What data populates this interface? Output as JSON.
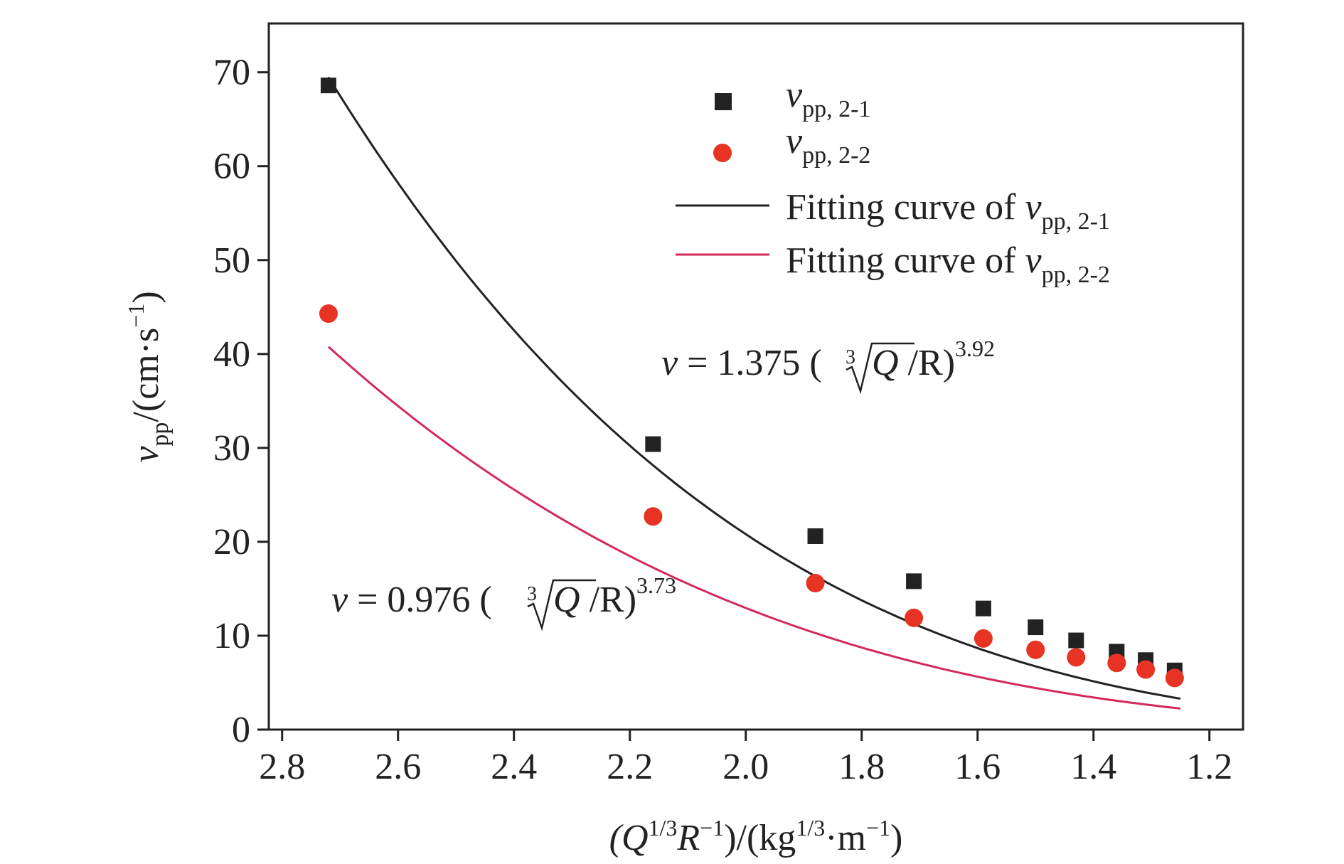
{
  "chart_data": {
    "type": "scatter",
    "x_axis": {
      "label_parts": [
        "(Q",
        "1/3",
        "R",
        "−1",
        ")/(kg",
        "1/3",
        "·m",
        "−1",
        ")"
      ],
      "range": [
        2.9,
        1.15
      ],
      "reversed": true,
      "ticks": [
        2.8,
        2.6,
        2.4,
        2.2,
        2.0,
        1.8,
        1.6,
        1.4,
        1.2
      ],
      "tick_labels": [
        "2.8",
        "2.6",
        "2.4",
        "2.2",
        "2.0",
        "1.8",
        "1.6",
        "1.4",
        "1.2"
      ]
    },
    "y_axis": {
      "label_parts": [
        "v",
        "pp",
        "/(cm·s",
        "−1",
        ")"
      ],
      "range": [
        0,
        75
      ],
      "ticks": [
        0,
        10,
        20,
        30,
        40,
        50,
        60,
        70
      ],
      "tick_labels": [
        "0",
        "10",
        "20",
        "30",
        "40",
        "50",
        "60",
        "70"
      ]
    },
    "series": [
      {
        "name_parts": [
          "v",
          "pp, 2-1"
        ],
        "marker": "square",
        "color": "#222222",
        "x": [
          2.72,
          2.16,
          1.88,
          1.71,
          1.59,
          1.5,
          1.43,
          1.36,
          1.31,
          1.26
        ],
        "y": [
          68.6,
          30.4,
          20.6,
          15.8,
          12.9,
          10.9,
          9.5,
          8.3,
          7.4,
          6.3
        ]
      },
      {
        "name_parts": [
          "v",
          "pp, 2-2"
        ],
        "marker": "circle",
        "color": "#e63323",
        "x": [
          2.72,
          2.16,
          1.88,
          1.71,
          1.59,
          1.5,
          1.43,
          1.36,
          1.31,
          1.26
        ],
        "y": [
          44.3,
          22.7,
          15.6,
          11.9,
          9.7,
          8.5,
          7.7,
          7.1,
          6.4,
          5.5
        ]
      }
    ],
    "fits": [
      {
        "label_parts": [
          "Fitting curve of ",
          "v",
          "pp, 2-1"
        ],
        "color": "#222222",
        "coef": 1.375,
        "exp": 3.92,
        "x_range": [
          2.72,
          1.25
        ],
        "equation": {
          "lhs": "v",
          "eq": " = 1.375 (",
          "root_index": "3",
          "radicand": "Q",
          "rest": " /R)",
          "power": "3.92"
        }
      },
      {
        "label_parts": [
          "Fitting curve of ",
          "v",
          "pp, 2-2"
        ],
        "color": "#d42a5a",
        "coef": 0.976,
        "exp": 3.73,
        "x_range": [
          2.72,
          1.25
        ],
        "equation": {
          "lhs": "v",
          "eq": " = 0.976 (",
          "root_index": "3",
          "radicand": "Q",
          "rest": " /R)",
          "power": "3.73"
        }
      }
    ],
    "legend": {
      "position": "top-right"
    },
    "grid": false
  }
}
